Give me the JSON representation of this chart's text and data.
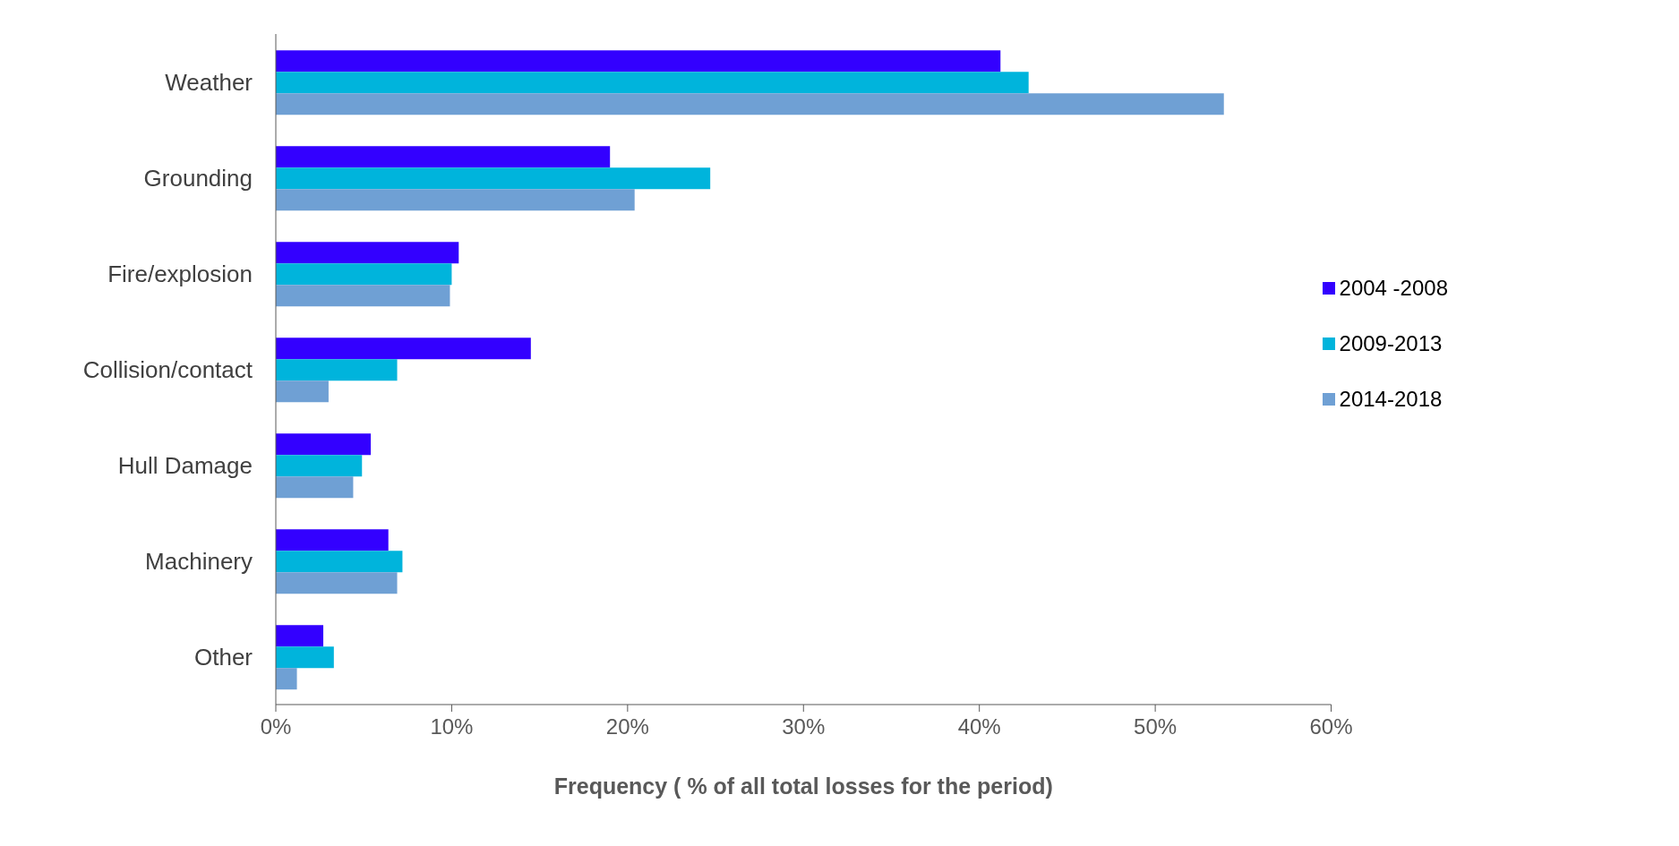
{
  "chart_data": {
    "type": "bar",
    "orientation": "horizontal",
    "xlabel": "Frequency ( % of all total losses for the period)",
    "categories": [
      "Weather",
      "Grounding",
      "Fire/explosion",
      "Collision/contact",
      "Hull Damage",
      "Machinery",
      "Other"
    ],
    "series": [
      {
        "name": "2004 -2008",
        "color": "#3300ff",
        "values": [
          41.2,
          19.0,
          10.4,
          14.5,
          5.4,
          6.4,
          2.7
        ]
      },
      {
        "name": "2009-2013",
        "color": "#00b4dc",
        "values": [
          42.8,
          24.7,
          10.0,
          6.9,
          4.9,
          7.2,
          3.3
        ]
      },
      {
        "name": "2014-2018",
        "color": "#6fa0d4",
        "values": [
          53.9,
          20.4,
          9.9,
          3.0,
          4.4,
          6.9,
          1.2
        ]
      }
    ],
    "xlim": [
      0,
      60
    ],
    "xticks": [
      {
        "value": 0,
        "label": "0%"
      },
      {
        "value": 10,
        "label": "10%"
      },
      {
        "value": 20,
        "label": "20%"
      },
      {
        "value": 30,
        "label": "30%"
      },
      {
        "value": 40,
        "label": "40%"
      },
      {
        "value": 50,
        "label": "50%"
      },
      {
        "value": 60,
        "label": "60%"
      }
    ],
    "grid": false,
    "legend": "right"
  }
}
